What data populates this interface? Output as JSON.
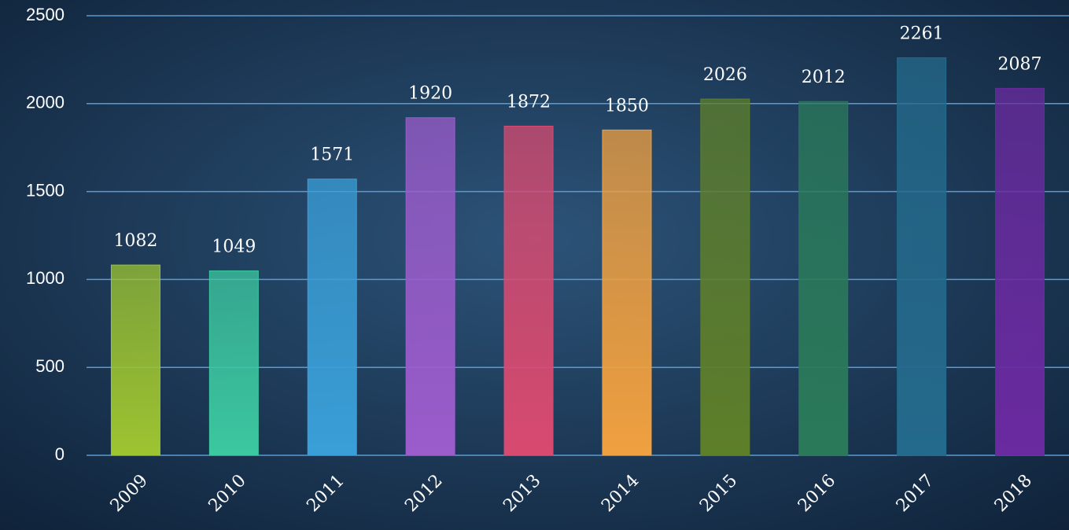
{
  "chart_data": {
    "type": "bar",
    "categories": [
      "2009",
      "2010",
      "2011",
      "2012",
      "2013",
      "2014",
      "2015",
      "2016",
      "2017",
      "2018"
    ],
    "values": [
      1082,
      1049,
      1571,
      1920,
      1872,
      1850,
      2026,
      2012,
      2261,
      2087
    ],
    "colors": [
      "#9dc431",
      "#3cc8a0",
      "#3a9fd8",
      "#9b5ccc",
      "#d84a70",
      "#f0a040",
      "#5e7f2a",
      "#2a7a5a",
      "#246a8c",
      "#6a2aa0"
    ],
    "ylim": [
      0,
      2500
    ],
    "yticks": [
      0,
      500,
      1000,
      1500,
      2000,
      2500
    ],
    "grid": true
  }
}
